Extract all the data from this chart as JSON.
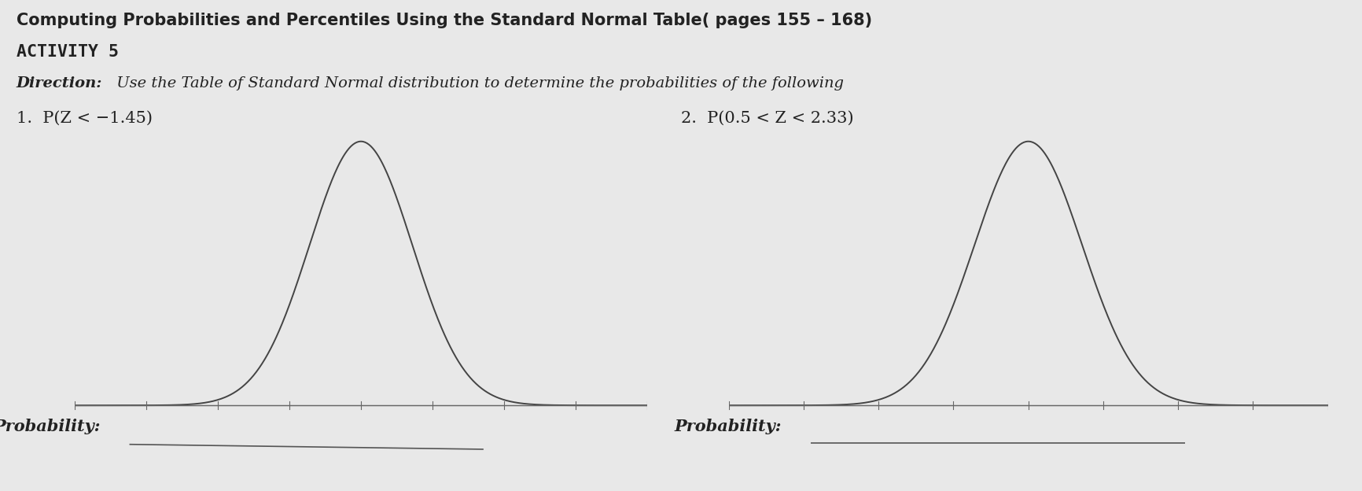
{
  "title_line1": "Computing Probabilities and Percentiles Using the Standard Normal Table( pages 155 – 168)",
  "title_line2": "ACTIVITY 5",
  "direction_bold": "Direction:",
  "direction_text": " Use the Table of Standard Normal distribution to determine the probabilities of the following",
  "problem1_label": "1.  P(Z < −1.45)",
  "problem2_label": "2.  P(0.5 < Z < 2.33)",
  "prob_label1": "Probability:",
  "prob_label2": "Probability:",
  "bg_color": "#e8e8e8",
  "curve_color": "#444444",
  "text_color": "#222222",
  "title_fontsize": 15,
  "label_fontsize": 15,
  "prob_fontsize": 15,
  "direction_fontsize": 14,
  "curve_sigma": 0.72
}
